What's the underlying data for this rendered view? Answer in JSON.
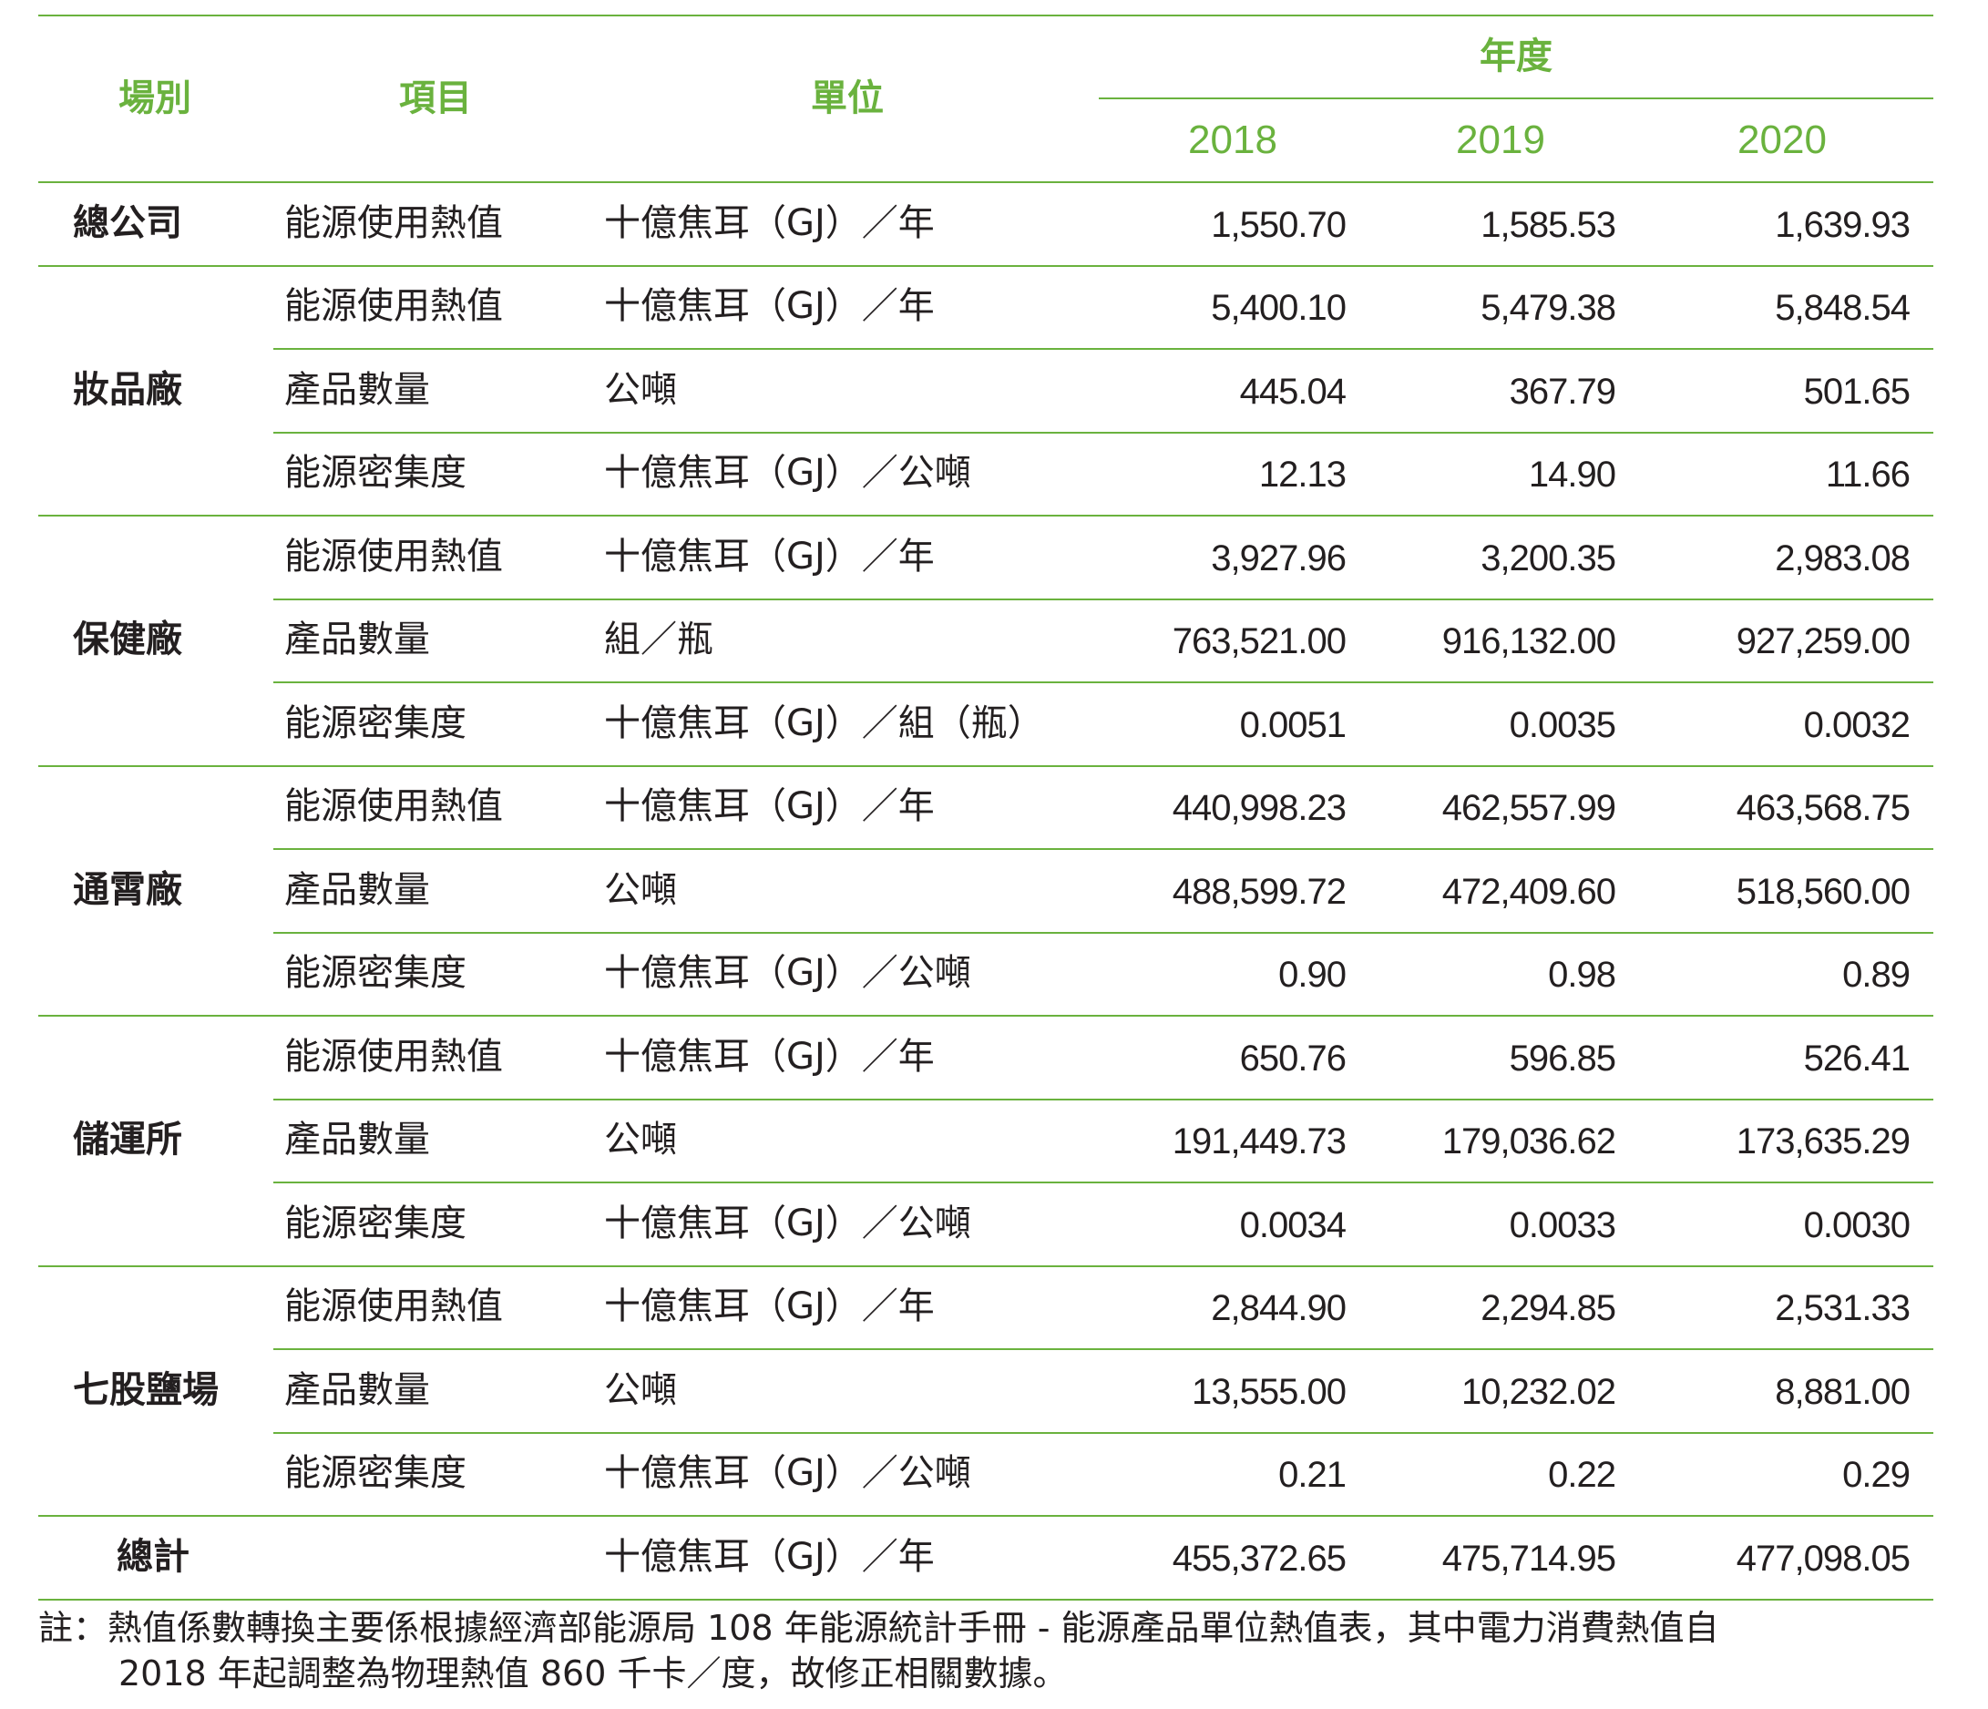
{
  "headers": {
    "site": "場別",
    "item": "項目",
    "unit": "單位",
    "year_group": "年度",
    "years": [
      "2018",
      "2019",
      "2020"
    ]
  },
  "groups": [
    {
      "site": "總公司",
      "rows": [
        {
          "item": "能源使用熱值",
          "unit": "十億焦耳（GJ）／年",
          "values": [
            "1,550.70",
            "1,585.53",
            "1,639.93"
          ]
        }
      ]
    },
    {
      "site": "妝品廠",
      "rows": [
        {
          "item": "能源使用熱值",
          "unit": "十億焦耳（GJ）／年",
          "values": [
            "5,400.10",
            "5,479.38",
            "5,848.54"
          ]
        },
        {
          "item": "產品數量",
          "unit": "公噸",
          "values": [
            "445.04",
            "367.79",
            "501.65"
          ]
        },
        {
          "item": "能源密集度",
          "unit": "十億焦耳（GJ）／公噸",
          "values": [
            "12.13",
            "14.90",
            "11.66"
          ]
        }
      ]
    },
    {
      "site": "保健廠",
      "rows": [
        {
          "item": "能源使用熱值",
          "unit": "十億焦耳（GJ）／年",
          "values": [
            "3,927.96",
            "3,200.35",
            "2,983.08"
          ]
        },
        {
          "item": "產品數量",
          "unit": "組／瓶",
          "values": [
            "763,521.00",
            "916,132.00",
            "927,259.00"
          ]
        },
        {
          "item": "能源密集度",
          "unit": "十億焦耳（GJ）／組（瓶）",
          "values": [
            "0.0051",
            "0.0035",
            "0.0032"
          ]
        }
      ]
    },
    {
      "site": "通霄廠",
      "rows": [
        {
          "item": "能源使用熱值",
          "unit": "十億焦耳（GJ）／年",
          "values": [
            "440,998.23",
            "462,557.99",
            "463,568.75"
          ]
        },
        {
          "item": "產品數量",
          "unit": "公噸",
          "values": [
            "488,599.72",
            "472,409.60",
            "518,560.00"
          ]
        },
        {
          "item": "能源密集度",
          "unit": "十億焦耳（GJ）／公噸",
          "values": [
            "0.90",
            "0.98",
            "0.89"
          ]
        }
      ]
    },
    {
      "site": "儲運所",
      "rows": [
        {
          "item": "能源使用熱值",
          "unit": "十億焦耳（GJ）／年",
          "values": [
            "650.76",
            "596.85",
            "526.41"
          ]
        },
        {
          "item": "產品數量",
          "unit": "公噸",
          "values": [
            "191,449.73",
            "179,036.62",
            "173,635.29"
          ]
        },
        {
          "item": "能源密集度",
          "unit": "十億焦耳（GJ）／公噸",
          "values": [
            "0.0034",
            "0.0033",
            "0.0030"
          ]
        }
      ]
    },
    {
      "site": "七股鹽場",
      "rows": [
        {
          "item": "能源使用熱值",
          "unit": "十億焦耳（GJ）／年",
          "values": [
            "2,844.90",
            "2,294.85",
            "2,531.33"
          ]
        },
        {
          "item": "產品數量",
          "unit": "公噸",
          "values": [
            "13,555.00",
            "10,232.02",
            "8,881.00"
          ]
        },
        {
          "item": "能源密集度",
          "unit": "十億焦耳（GJ）／公噸",
          "values": [
            "0.21",
            "0.22",
            "0.29"
          ]
        }
      ]
    }
  ],
  "total": {
    "label": "總計",
    "unit": "十億焦耳（GJ）／年",
    "values": [
      "455,372.65",
      "475,714.95",
      "477,098.05"
    ]
  },
  "note": {
    "line1": "註：熱值係數轉換主要係根據經濟部能源局 108 年能源統計手冊 - 能源產品單位熱值表，其中電力消費熱值自",
    "line2": "2018 年起調整為物理熱值 860 千卡／度，故修正相關數據。"
  },
  "colors": {
    "accent": "#6ab23e",
    "text": "#231f20"
  }
}
